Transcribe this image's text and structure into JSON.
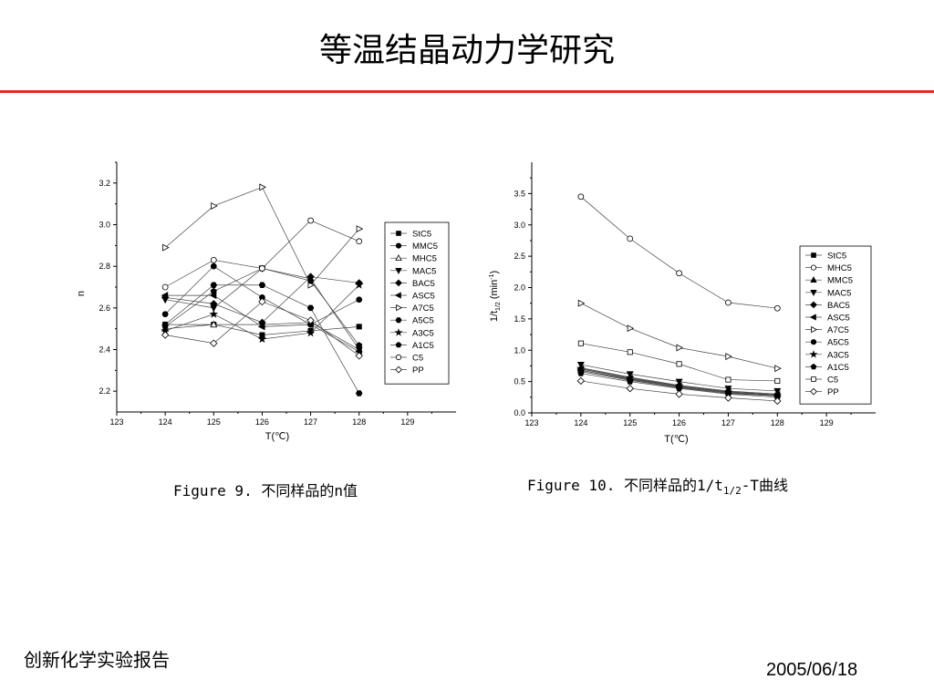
{
  "slide": {
    "title": "等温结晶动力学研究",
    "footer_left": "创新化学实验报告",
    "footer_right": "2005/06/18",
    "accent_color": "#e8262a"
  },
  "captions": {
    "fig9": "Figure 9. 不同样品的n值",
    "fig10_prefix": "Figure 10. 不同样品的1/t",
    "fig10_sub": "1/2",
    "fig10_suffix": "-T曲线"
  },
  "chart_data": [
    {
      "type": "line",
      "title": "",
      "xlabel": "T(℃)",
      "ylabel": "n",
      "xlim": [
        123,
        130
      ],
      "ylim": [
        2.1,
        3.3
      ],
      "xticks": [
        123,
        124,
        125,
        126,
        127,
        128,
        129
      ],
      "yticks": [
        2.2,
        2.4,
        2.6,
        2.8,
        3.0,
        3.2
      ],
      "legend": "right",
      "x": [
        124,
        125,
        126,
        127,
        128
      ],
      "series": [
        {
          "name": "StC5",
          "marker": "square-filled",
          "values": [
            2.52,
            2.52,
            2.47,
            2.49,
            2.51
          ]
        },
        {
          "name": "MMC5",
          "marker": "circle-filled",
          "values": [
            2.57,
            2.8,
            2.65,
            2.52,
            2.64
          ]
        },
        {
          "name": "MHC5",
          "marker": "triangle-up-open",
          "values": [
            2.5,
            2.52,
            2.52,
            2.53,
            2.4
          ]
        },
        {
          "name": "MAC5",
          "marker": "triangle-down-filled",
          "values": [
            2.64,
            2.6,
            2.79,
            2.74,
            2.4
          ]
        },
        {
          "name": "BAC5",
          "marker": "diamond-filled",
          "values": [
            2.65,
            2.62,
            2.53,
            2.75,
            2.72
          ]
        },
        {
          "name": "ASC5",
          "marker": "triangle-left-filled",
          "values": [
            2.66,
            2.66,
            2.51,
            2.52,
            2.39
          ]
        },
        {
          "name": "A7C5",
          "marker": "triangle-right-open",
          "values": [
            2.89,
            3.09,
            3.18,
            2.71,
            2.98
          ]
        },
        {
          "name": "A5C5",
          "marker": "hexagon-filled",
          "values": [
            2.52,
            2.71,
            2.71,
            2.6,
            2.19
          ]
        },
        {
          "name": "A3C5",
          "marker": "star-filled",
          "values": [
            2.49,
            2.57,
            2.45,
            2.48,
            2.71
          ]
        },
        {
          "name": "A1C5",
          "marker": "pentagon-filled",
          "values": [
            2.51,
            2.68,
            2.79,
            2.73,
            2.42
          ]
        },
        {
          "name": "C5",
          "marker": "circle-open",
          "values": [
            2.7,
            2.83,
            2.79,
            3.02,
            2.92
          ]
        },
        {
          "name": "PP",
          "marker": "diamond-open",
          "values": [
            2.47,
            2.43,
            2.63,
            2.54,
            2.37
          ]
        }
      ]
    },
    {
      "type": "line",
      "title": "",
      "xlabel": "T(℃)",
      "ylabel_main": "1/t",
      "ylabel_sub": "1/2",
      "ylabel_unit": " (min",
      "ylabel_sup": "-1",
      "ylabel_close": ")",
      "xlim": [
        123,
        130
      ],
      "ylim": [
        0,
        4.0
      ],
      "xticks": [
        123,
        124,
        125,
        126,
        127,
        128,
        129
      ],
      "yticks": [
        0.0,
        0.5,
        1.0,
        1.5,
        2.0,
        2.5,
        3.0,
        3.5
      ],
      "legend": "right",
      "x": [
        124,
        125,
        126,
        127,
        128
      ],
      "series": [
        {
          "name": "StC5",
          "marker": "square-filled",
          "values": [
            0.68,
            0.54,
            0.42,
            0.33,
            0.28
          ]
        },
        {
          "name": "MHC5",
          "marker": "circle-open",
          "values": [
            3.45,
            2.78,
            2.23,
            1.76,
            1.67
          ]
        },
        {
          "name": "MMC5",
          "marker": "triangle-up-filled",
          "values": [
            0.72,
            0.57,
            0.44,
            0.35,
            0.3
          ]
        },
        {
          "name": "MAC5",
          "marker": "triangle-down-filled",
          "values": [
            0.77,
            0.62,
            0.5,
            0.39,
            0.35
          ]
        },
        {
          "name": "BAC5",
          "marker": "diamond-filled",
          "values": [
            0.68,
            0.53,
            0.41,
            0.32,
            0.27
          ]
        },
        {
          "name": "ASC5",
          "marker": "triangle-left-filled",
          "values": [
            0.7,
            0.55,
            0.43,
            0.34,
            0.29
          ]
        },
        {
          "name": "A7C5",
          "marker": "triangle-right-open",
          "values": [
            1.75,
            1.35,
            1.04,
            0.9,
            0.71
          ]
        },
        {
          "name": "A5C5",
          "marker": "circle-filled",
          "values": [
            0.66,
            0.52,
            0.4,
            0.31,
            0.27
          ]
        },
        {
          "name": "A3C5",
          "marker": "star-filled",
          "values": [
            0.71,
            0.56,
            0.43,
            0.33,
            0.28
          ]
        },
        {
          "name": "A1C5",
          "marker": "pentagon-filled",
          "values": [
            0.63,
            0.5,
            0.39,
            0.3,
            0.25
          ]
        },
        {
          "name": "C5",
          "marker": "square-open",
          "values": [
            1.11,
            0.97,
            0.78,
            0.53,
            0.51
          ]
        },
        {
          "name": "PP",
          "marker": "diamond-open",
          "values": [
            0.51,
            0.39,
            0.3,
            0.24,
            0.19
          ]
        }
      ]
    }
  ]
}
